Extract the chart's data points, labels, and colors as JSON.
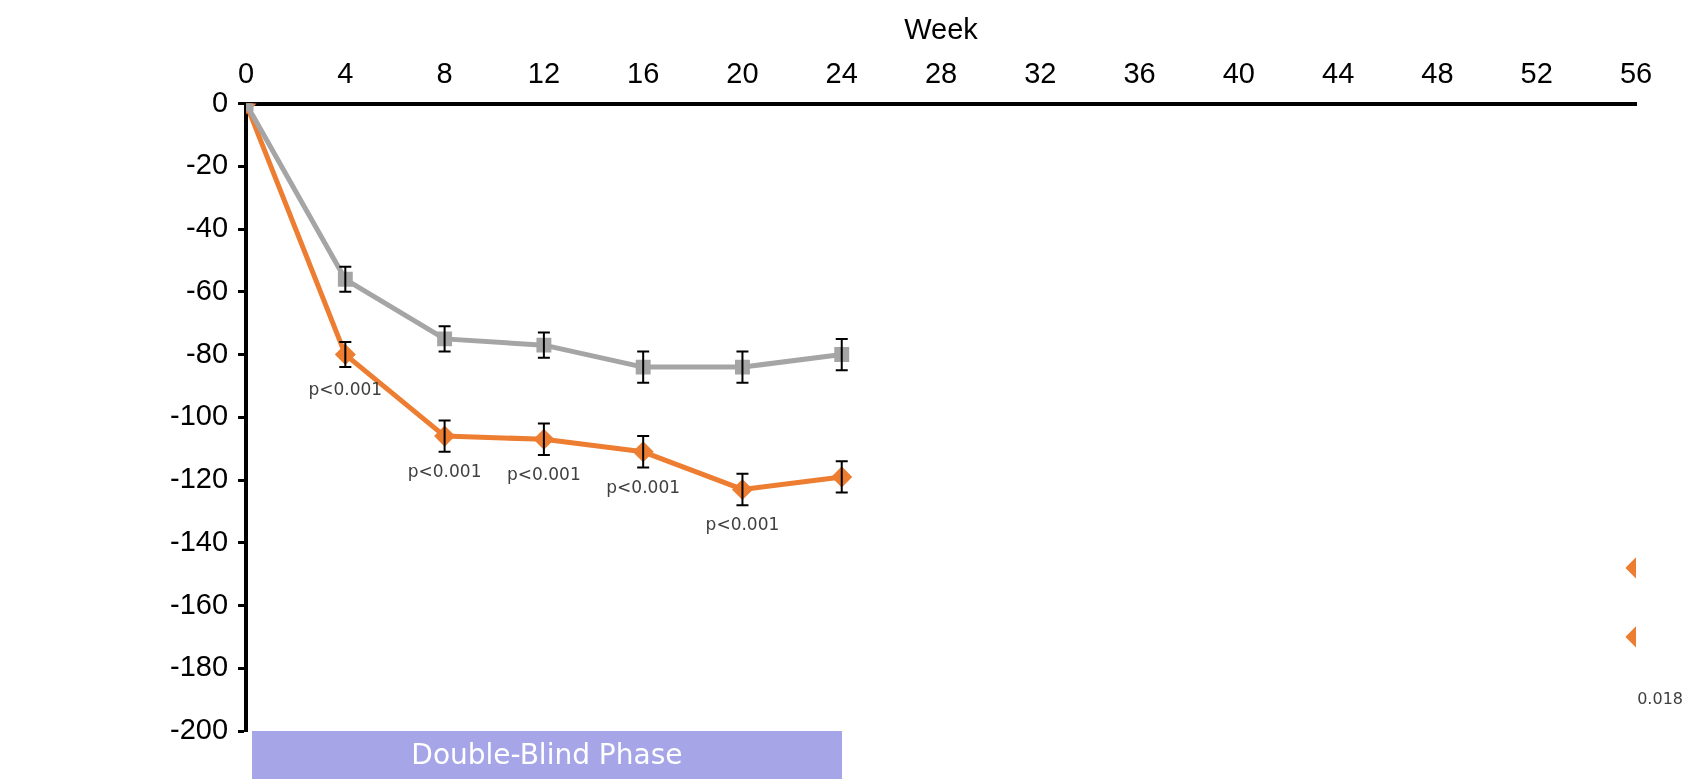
{
  "chart_data": {
    "type": "line",
    "xlabel": "Week",
    "xlim": [
      0,
      56
    ],
    "xticks": [
      0,
      4,
      8,
      12,
      16,
      20,
      24,
      28,
      32,
      36,
      40,
      44,
      48,
      52,
      56
    ],
    "ylim": [
      -200,
      0
    ],
    "yticks": [
      0,
      -20,
      -40,
      -60,
      -80,
      -100,
      -120,
      -140,
      -160,
      -180,
      -200
    ],
    "grid": false,
    "legend": false,
    "series": [
      {
        "color": "#a5a5a5",
        "marker": "square",
        "x": [
          0,
          4,
          8,
          12,
          16,
          20,
          24
        ],
        "values": [
          0,
          -56,
          -75,
          -77,
          -84,
          -84,
          -80
        ],
        "errors": [
          null,
          4,
          4,
          4,
          5,
          5,
          5
        ]
      },
      {
        "color": "#ed7d31",
        "marker": "diamond",
        "x": [
          0,
          4,
          8,
          12,
          16,
          20,
          24
        ],
        "values": [
          0,
          -80,
          -106,
          -107,
          -111,
          -123,
          -119
        ],
        "errors": [
          null,
          4,
          5,
          5,
          5,
          5,
          5
        ]
      },
      {
        "color": "#ed7d31",
        "marker": "diamond",
        "type": "scatter",
        "x": [
          56,
          56
        ],
        "values": [
          -148,
          -170
        ]
      }
    ],
    "annotations": [
      "Double-Blind Phase",
      {
        "text": "p<0.001",
        "x": 4,
        "y": -80
      },
      {
        "text": "p<0.001",
        "x": 8,
        "y": -106
      },
      {
        "text": "p<0.001",
        "x": 12,
        "y": -107
      },
      {
        "text": "p<0.001",
        "x": 16,
        "y": -111
      },
      {
        "text": "p<0.001",
        "x": 20,
        "y": -123
      },
      "0.018"
    ]
  }
}
